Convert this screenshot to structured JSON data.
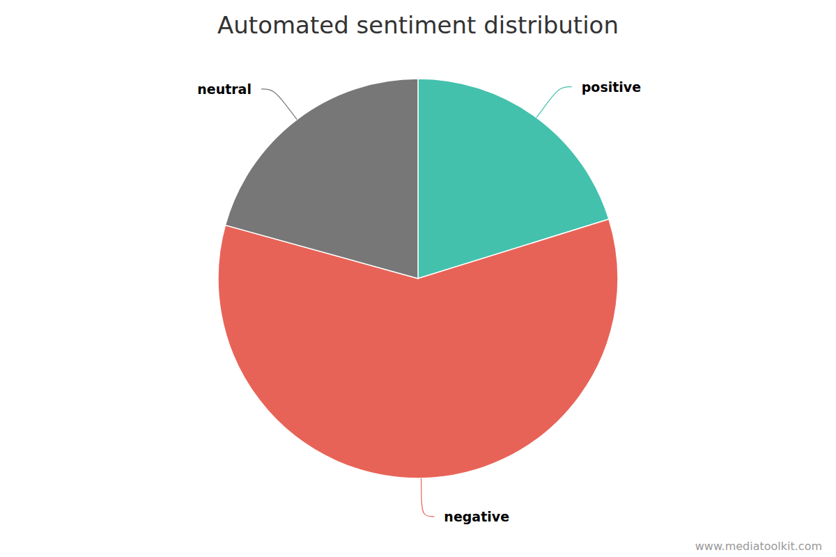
{
  "chart_data": {
    "type": "pie",
    "title": "Automated sentiment distribution",
    "categories": [
      "positive",
      "negative",
      "neutral"
    ],
    "values": [
      20.2,
      59.1,
      20.7
    ],
    "colors": [
      "#43c1ac",
      "#e86357",
      "#777777"
    ],
    "source": "www.mediatoolkit.com"
  }
}
